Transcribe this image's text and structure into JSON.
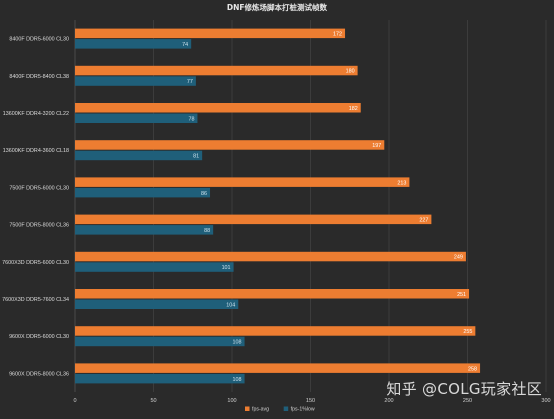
{
  "watermark": "知乎 @COLG玩家社区",
  "chart_data": {
    "type": "bar",
    "orientation": "horizontal",
    "title": "DNF修炼场脚本打桩测试帧数",
    "categories": [
      "8400F DDR5-6000 CL30",
      "8400F DDR5-8400 CL38",
      "13600KF DDR4-3200 CL22",
      "13600KF DDR4-3600 CL18",
      "7500F DDR5-6000 CL30",
      "7500F DDR5-8000 CL36",
      "7600X3D DDR5-6000 CL30",
      "7600X3D DDR5-7600 CL34",
      "9600X DDR5-6000 CL30",
      "9600X DDR5-8000 CL36"
    ],
    "series": [
      {
        "name": "fps-avg",
        "color": "#ed7d31",
        "values": [
          172,
          180,
          182,
          197,
          213,
          227,
          249,
          251,
          255,
          258
        ]
      },
      {
        "name": "fps-1%low",
        "color": "#1f5f7a",
        "values": [
          74,
          77,
          78,
          81,
          86,
          88,
          101,
          104,
          108,
          108
        ]
      }
    ],
    "xlim": [
      0,
      300
    ],
    "xticks": [
      0,
      50,
      100,
      150,
      200,
      250,
      300
    ],
    "grid": true,
    "legend_position": "bottom-center",
    "data_labels": true
  }
}
